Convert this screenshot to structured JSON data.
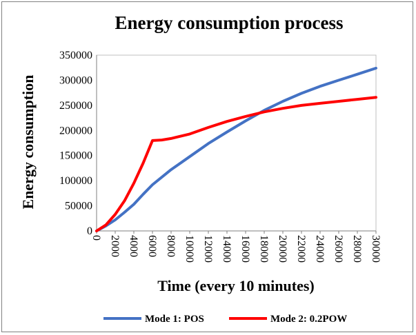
{
  "chart_data": {
    "type": "line",
    "title": "Energy consumption process",
    "xlabel": "Time (every 10 minutes)",
    "ylabel": "Energy consumption",
    "xlim": [
      0,
      30000
    ],
    "ylim": [
      0,
      350000
    ],
    "x_ticks": [
      0,
      2000,
      4000,
      6000,
      8000,
      10000,
      12000,
      14000,
      16000,
      18000,
      20000,
      22000,
      24000,
      26000,
      28000,
      30000
    ],
    "y_ticks": [
      0,
      50000,
      100000,
      150000,
      200000,
      250000,
      300000,
      350000
    ],
    "grid": false,
    "legend_position": "bottom",
    "series": [
      {
        "name": "Mode 1: POS",
        "color": "#4472c4",
        "x": [
          0,
          1000,
          2000,
          3000,
          4000,
          5000,
          6000,
          8000,
          10000,
          12000,
          14000,
          16000,
          18000,
          20000,
          22000,
          24000,
          26000,
          28000,
          30000
        ],
        "y": [
          0,
          10000,
          22000,
          37000,
          53000,
          73000,
          92000,
          122000,
          148000,
          174000,
          197000,
          219000,
          240000,
          258000,
          274000,
          288000,
          300000,
          312000,
          324000
        ]
      },
      {
        "name": "Mode 2: 0.2POW",
        "color": "#ff0000",
        "x": [
          0,
          1000,
          2000,
          3000,
          4000,
          5000,
          6000,
          7000,
          8000,
          10000,
          12000,
          14000,
          16000,
          18000,
          20000,
          22000,
          24000,
          26000,
          28000,
          30000
        ],
        "y": [
          0,
          12000,
          33000,
          60000,
          95000,
          135000,
          180000,
          181000,
          184000,
          193000,
          206000,
          218000,
          228000,
          237000,
          244000,
          250000,
          254000,
          258000,
          262000,
          266000
        ]
      }
    ]
  }
}
